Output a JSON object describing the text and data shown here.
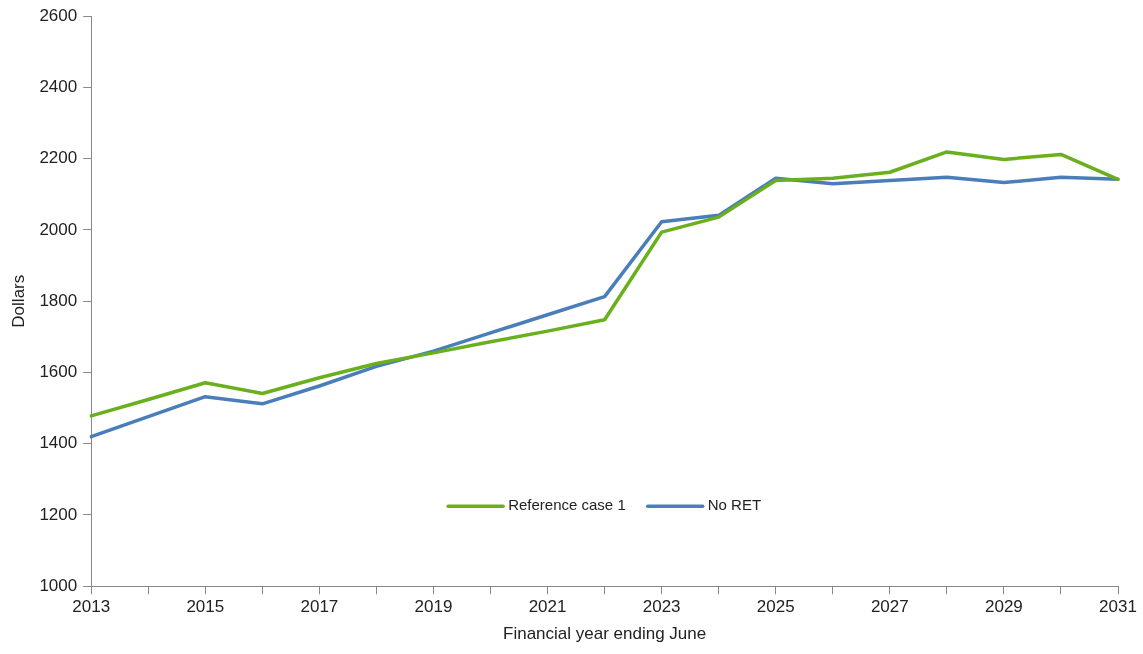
{
  "chart_data": {
    "type": "line",
    "xlabel": "Financial year ending June",
    "ylabel": "Dollars",
    "categories": [
      "2013",
      null,
      "2015",
      null,
      "2017",
      null,
      "2019",
      null,
      "2021",
      null,
      "2023",
      null,
      "2025",
      null,
      "2027",
      null,
      "2029",
      null,
      "2031"
    ],
    "series": [
      {
        "name": "Reference case 1",
        "color": "#6aaf1e",
        "values": [
          1478,
          1524,
          1571,
          1541,
          1585,
          1625,
          1655,
          1686,
          1716,
          1748,
          1994,
          2036,
          2139,
          2145,
          2162,
          2219,
          2198,
          2212,
          2142
        ]
      },
      {
        "name": "No RET",
        "color": "#4a7ebb",
        "values": [
          1420,
          1476,
          1532,
          1512,
          1562,
          1617,
          1660,
          1711,
          1762,
          1813,
          2023,
          2041,
          2145,
          2130,
          2139,
          2148,
          2133,
          2148,
          2142
        ]
      }
    ],
    "ylim": [
      1000,
      2600
    ],
    "yticks": [
      1000,
      1200,
      1400,
      1600,
      1800,
      2000,
      2200,
      2400,
      2600
    ],
    "grid": false,
    "legend": "bottom",
    "marker": "none",
    "line_style": "solid"
  }
}
